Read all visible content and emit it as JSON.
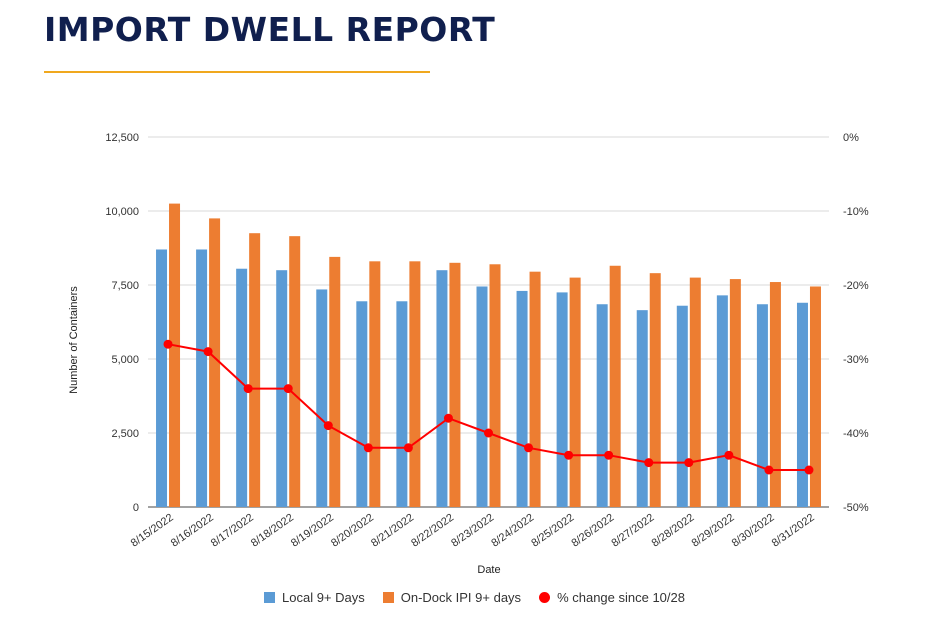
{
  "header": {
    "title": "IMPORT DWELL REPORT"
  },
  "chart_data": {
    "type": "bar",
    "categories": [
      "8/15/2022",
      "8/16/2022",
      "8/17/2022",
      "8/18/2022",
      "8/19/2022",
      "8/20/2022",
      "8/21/2022",
      "8/22/2022",
      "8/23/2022",
      "8/24/2022",
      "8/25/2022",
      "8/26/2022",
      "8/27/2022",
      "8/28/2022",
      "8/29/2022",
      "8/30/2022",
      "8/31/2022"
    ],
    "series": [
      {
        "name": "Local 9+ Days",
        "type": "bar",
        "axis": "left",
        "color": "#5b9bd5",
        "values": [
          8700,
          8700,
          8050,
          8000,
          7350,
          6950,
          6950,
          8000,
          7450,
          7300,
          7250,
          6850,
          6650,
          6800,
          7150,
          6850,
          6900
        ]
      },
      {
        "name": "On-Dock IPI 9+ days",
        "type": "bar",
        "axis": "left",
        "color": "#ed7d31",
        "values": [
          10250,
          9750,
          9250,
          9150,
          8450,
          8300,
          8300,
          8250,
          8200,
          7950,
          7750,
          8150,
          7900,
          7750,
          7700,
          7600,
          7450
        ]
      },
      {
        "name": "% change since 10/28",
        "type": "line",
        "axis": "right",
        "color": "#ff0000",
        "values": [
          -28,
          -29,
          -34,
          -34,
          -39,
          -42,
          -42,
          -38,
          -40,
          -42,
          -43,
          -43,
          -44,
          -44,
          -43,
          -45,
          -45
        ]
      }
    ],
    "xlabel": "Date",
    "ylabel": "Number of Containers",
    "ylim": [
      0,
      12500
    ],
    "yticks": [
      "0",
      "2,500",
      "5,000",
      "7,500",
      "10,000",
      "12,500"
    ],
    "y2lim": [
      -50,
      0
    ],
    "y2ticks": [
      "-50%",
      "-40%",
      "-30%",
      "-20%",
      "-10%",
      "0%"
    ],
    "grid": true,
    "legend_position": "bottom"
  }
}
